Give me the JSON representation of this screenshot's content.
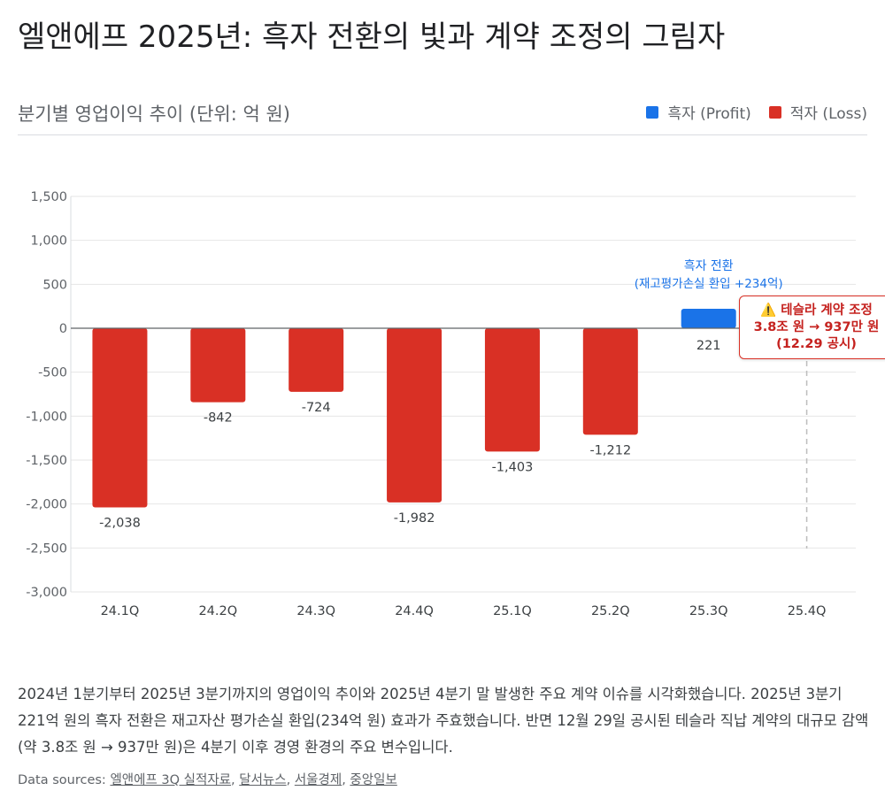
{
  "title": "엘앤에프 2025년: 흑자 전환의 빛과 계약 조정의 그림자",
  "colors": {
    "profit": "#1a73e8",
    "loss": "#d93025"
  },
  "chart_data": {
    "type": "bar",
    "title": "분기별 영업이익 추이 (단위: 억 원)",
    "xlabel": "",
    "ylabel": "",
    "ylim": [
      -3000,
      1500
    ],
    "yticks": [
      1500,
      1000,
      500,
      0,
      -500,
      -1000,
      -1500,
      -2000,
      -2500,
      -3000
    ],
    "ytick_labels": [
      "1,500",
      "1,000",
      "500",
      "0",
      "-500",
      "-1,000",
      "-1,500",
      "-2,000",
      "-2,500",
      "-3,000"
    ],
    "categories": [
      "24.1Q",
      "24.2Q",
      "24.3Q",
      "24.4Q",
      "25.1Q",
      "25.2Q",
      "25.3Q",
      "25.4Q"
    ],
    "values": [
      -2038,
      -842,
      -724,
      -1982,
      -1403,
      -1212,
      221,
      null
    ],
    "value_labels": [
      "-2,038",
      "-842",
      "-724",
      "-1,982",
      "-1,403",
      "-1,212",
      "221",
      ""
    ],
    "legend": {
      "position": "top-right",
      "entries": [
        {
          "name": "흑자 (Profit)",
          "color": "#1a73e8"
        },
        {
          "name": "적자 (Loss)",
          "color": "#d93025"
        }
      ]
    },
    "grid": true,
    "annotations": {
      "profit_turn": {
        "line1": "흑자 전환",
        "line2": "(재고평가손실 환입 +234억)",
        "category": "25.3Q"
      },
      "tesla": {
        "line1": "⚠️ 테슬라 계약 조정",
        "line2": "3.8조 원 → 937만 원",
        "line3": "(12.29 공시)",
        "category": "25.4Q"
      }
    }
  },
  "description": "2024년 1분기부터 2025년 3분기까지의 영업이익 추이와 2025년 4분기 말 발생한 주요 계약 이슈를 시각화했습니다. 2025년 3분기 221억 원의 흑자 전환은 재고자산 평가손실 환입(234억 원) 효과가 주효했습니다. 반면 12월 29일 공시된 테슬라 직납 계약의 대규모 감액(약 3.8조 원 → 937만 원)은 4분기 이후 경영 환경의 주요 변수입니다.",
  "sources": {
    "label": "Data sources:",
    "items": [
      "엘앤에프 3Q 실적자료",
      "달서뉴스",
      "서울경제",
      "중앙일보"
    ]
  }
}
